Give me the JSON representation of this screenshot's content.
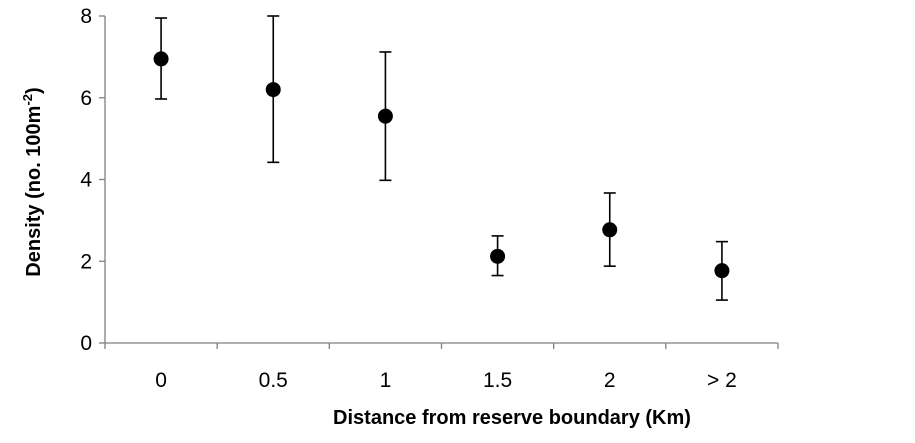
{
  "chart_data": {
    "type": "scatter",
    "categories": [
      "0",
      "0.5",
      "1",
      "1.5",
      "2",
      "> 2"
    ],
    "series": [
      {
        "values": [
          6.95,
          6.2,
          5.55,
          2.12,
          2.77,
          1.77
        ],
        "error_upper": [
          7.95,
          8.0,
          7.12,
          2.62,
          3.67,
          2.48
        ],
        "error_lower": [
          5.97,
          4.42,
          3.98,
          1.65,
          1.88,
          1.05
        ],
        "color": "#000000"
      }
    ],
    "xlabel": "Distance from reserve boundary (Km)",
    "ylabel_main": "Density (no. 100m",
    "ylabel_sup": "-2",
    "ylabel_end": ")",
    "ylim": [
      0,
      8
    ],
    "yticks": [
      0,
      2,
      4,
      6,
      8
    ],
    "grid": false,
    "legend": "none"
  }
}
